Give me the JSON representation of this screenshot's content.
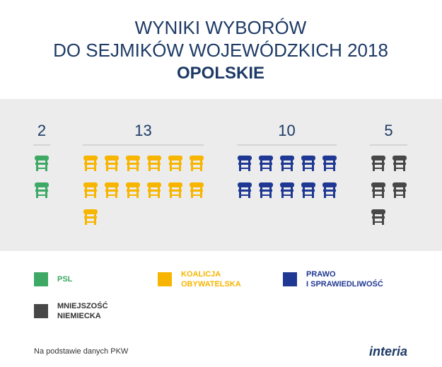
{
  "chart_data": {
    "type": "seats",
    "title": [
      "WYNIKI WYBORÓW",
      "DO SEJMIKÓW WOJEWÓDZKICH 2018"
    ],
    "subtitle": "OPOLSKIE",
    "series": [
      {
        "name": "PSL",
        "color": "#3ea965",
        "value": 2
      },
      {
        "name": "KOALICJA\nOBYWATELSKA",
        "color": "#f7b500",
        "value": 13
      },
      {
        "name": "PRAWO\nI SPRAWIEDLIWOŚĆ",
        "color": "#1f3893",
        "value": 10
      },
      {
        "name": "MNIEJSZOŚĆ\nNIEMIECKA",
        "color": "#474747",
        "value": 5
      }
    ],
    "source": "Na podstawie danych PKW",
    "logo": "interia"
  }
}
